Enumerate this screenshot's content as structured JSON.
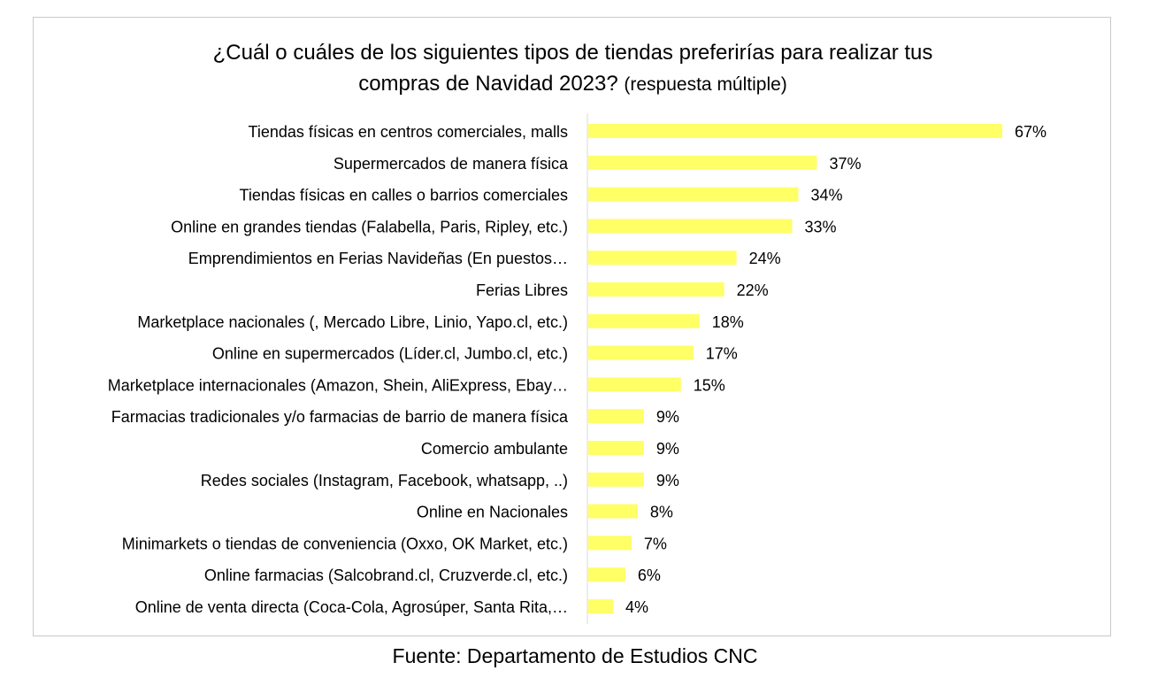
{
  "title_main": "¿Cuál o cuáles de los siguientes tipos de tiendas preferirías para realizar tus",
  "title_line2": "compras de Navidad 2023?",
  "title_note": "(respuesta múltiple)",
  "source": "Fuente: Departamento de Estudios CNC",
  "colors": {
    "bar": "#ffff66",
    "axis": "#d9d9d9",
    "frame": "#c9c9c9",
    "text": "#000000"
  },
  "chart_data": {
    "type": "bar",
    "orientation": "horizontal",
    "xlim": [
      0,
      70
    ],
    "grid": false,
    "legend": "none",
    "categories": [
      "Tiendas físicas en centros comerciales, malls",
      "Supermercados de manera física",
      "Tiendas físicas en calles o barrios comerciales",
      "Online en grandes tiendas (Falabella, Paris, Ripley, etc.)",
      "Emprendimientos en Ferias Navideñas (En puestos…",
      "Ferias Libres",
      "Marketplace nacionales (, Mercado Libre, Linio, Yapo.cl, etc.)",
      "Online en supermercados (Líder.cl, Jumbo.cl, etc.)",
      "Marketplace internacionales (Amazon, Shein, AliExpress, Ebay…",
      "Farmacias tradicionales y/o farmacias de barrio de manera física",
      "Comercio ambulante",
      "Redes sociales (Instagram, Facebook, whatsapp, ..)",
      "Online en Nacionales",
      "Minimarkets o tiendas de conveniencia (Oxxo, OK Market, etc.)",
      "Online farmacias (Salcobrand.cl, Cruzverde.cl, etc.)",
      "Online de venta directa (Coca-Cola, Agrosúper, Santa Rita,…"
    ],
    "values": [
      67,
      37,
      34,
      33,
      24,
      22,
      18,
      17,
      15,
      9,
      9,
      9,
      8,
      7,
      6,
      4
    ],
    "data_labels": [
      "67%",
      "37%",
      "34%",
      "33%",
      "24%",
      "22%",
      "18%",
      "17%",
      "15%",
      "9%",
      "9%",
      "9%",
      "8%",
      "7%",
      "6%",
      "4%"
    ]
  }
}
